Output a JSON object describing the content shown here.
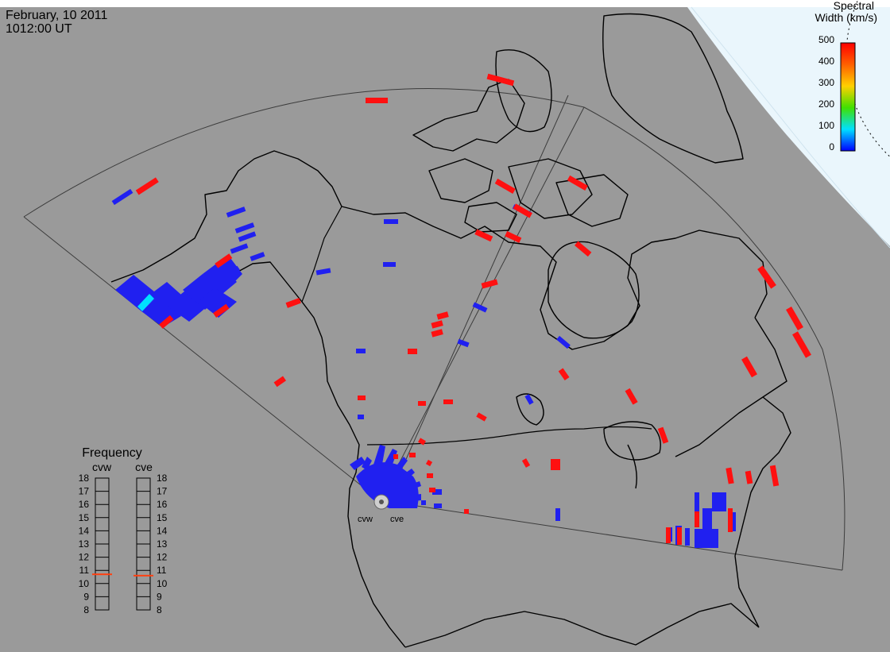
{
  "header": {
    "date": "February, 10 2011",
    "time": "1012:00 UT"
  },
  "colors": {
    "land_background": "#9a9a9a",
    "polar_cap": "#eaf6fc",
    "coastline": "#000000",
    "fov_outline": "#3c3c3c",
    "low_width": "#2020f0",
    "high_width": "#ff1010",
    "mid_width": "#00e0ff"
  },
  "scale": {
    "title_line1": "Spectral",
    "title_line2": "Width (km/s)",
    "ticks": [
      "500",
      "400",
      "300",
      "200",
      "100",
      "0"
    ],
    "gradient": [
      "#ff0000",
      "#ff8000",
      "#ffd000",
      "#40e000",
      "#00e0ff",
      "#0000ff"
    ]
  },
  "frequency": {
    "title": "Frequency",
    "radars": [
      {
        "name": "cvw",
        "value_mhz": 10.7
      },
      {
        "name": "cve",
        "value_mhz": 10.6
      }
    ],
    "ticks": [
      "18",
      "17",
      "16",
      "15",
      "14",
      "13",
      "12",
      "11",
      "10",
      "9",
      "8"
    ]
  },
  "radar_sites": [
    "cvw",
    "cve"
  ]
}
